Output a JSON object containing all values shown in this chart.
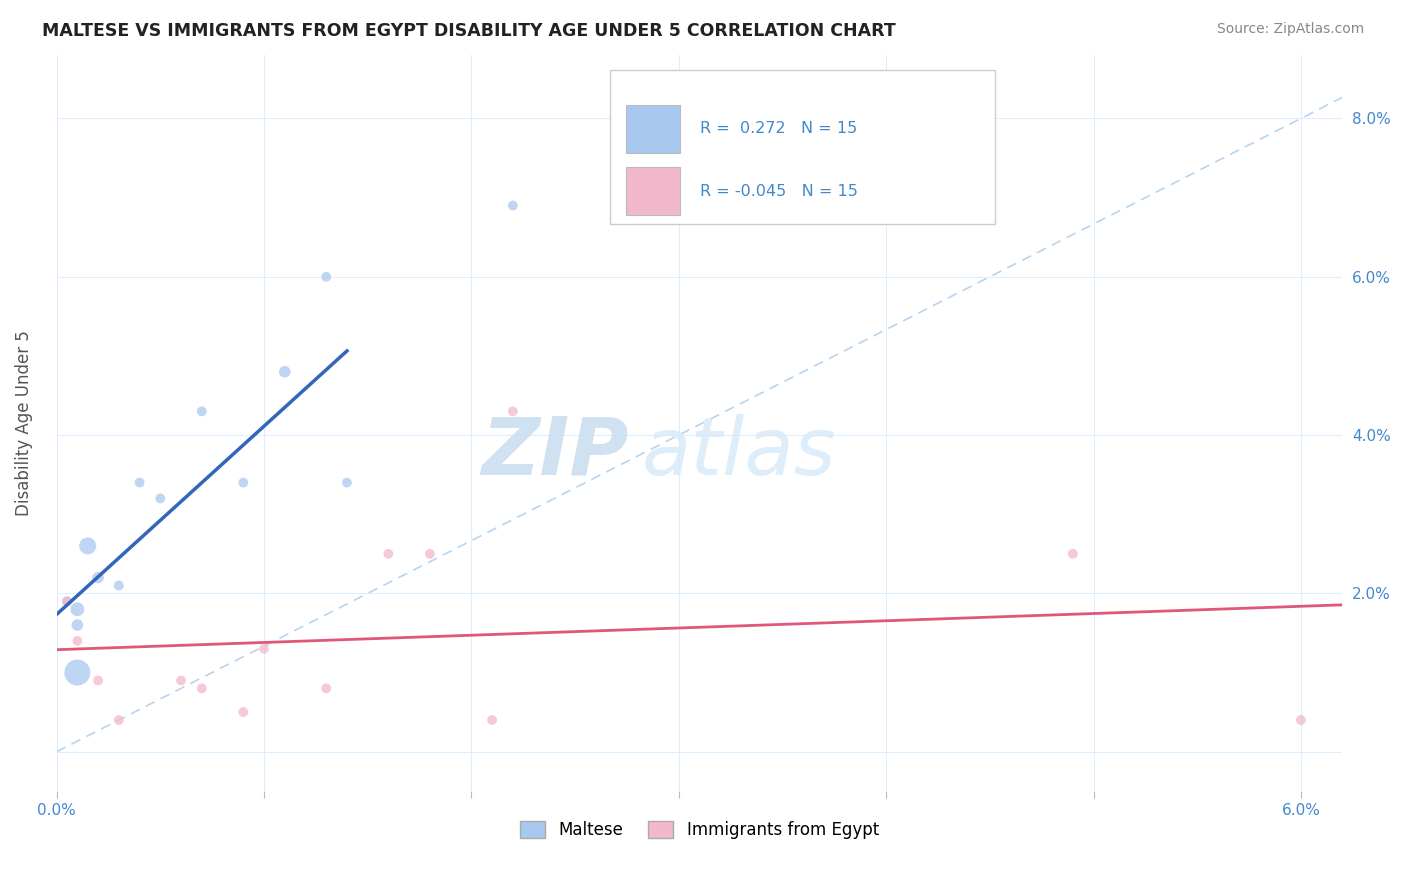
{
  "title": "MALTESE VS IMMIGRANTS FROM EGYPT DISABILITY AGE UNDER 5 CORRELATION CHART",
  "source": "Source: ZipAtlas.com",
  "ylabel": "Disability Age Under 5",
  "xlim": [
    0.0,
    0.062
  ],
  "ylim": [
    -0.005,
    0.088
  ],
  "legend_label1": "Maltese",
  "legend_label2": "Immigrants from Egypt",
  "r1": "0.272",
  "n1": 15,
  "r2": "-0.045",
  "n2": 15,
  "color_maltese": "#a8c8f0",
  "color_egypt": "#f4b8cc",
  "color_line_maltese": "#3366bb",
  "color_line_egypt": "#e05878",
  "color_diag": "#b8d4ee",
  "maltese_x": [
    0.0005,
    0.001,
    0.001,
    0.001,
    0.0015,
    0.002,
    0.003,
    0.004,
    0.005,
    0.007,
    0.009,
    0.011,
    0.013,
    0.014,
    0.022
  ],
  "maltese_y": [
    0.019,
    0.018,
    0.016,
    0.01,
    0.026,
    0.022,
    0.021,
    0.034,
    0.032,
    0.043,
    0.034,
    0.048,
    0.06,
    0.034,
    0.069
  ],
  "maltese_size": [
    50,
    100,
    70,
    350,
    150,
    70,
    50,
    50,
    50,
    50,
    50,
    70,
    50,
    50,
    50
  ],
  "egypt_x": [
    0.0005,
    0.001,
    0.002,
    0.003,
    0.006,
    0.007,
    0.009,
    0.01,
    0.013,
    0.016,
    0.018,
    0.021,
    0.022,
    0.049,
    0.06
  ],
  "egypt_y": [
    0.019,
    0.014,
    0.009,
    0.004,
    0.009,
    0.008,
    0.005,
    0.013,
    0.008,
    0.025,
    0.025,
    0.004,
    0.043,
    0.025,
    0.004
  ],
  "egypt_size": [
    50,
    50,
    50,
    50,
    50,
    50,
    50,
    50,
    50,
    50,
    50,
    50,
    50,
    50,
    50
  ],
  "maltese_line_x_start": 0.0,
  "maltese_line_x_end": 0.014,
  "egypt_line_x_start": 0.0,
  "egypt_line_x_end": 0.062,
  "watermark_zip": "ZIP",
  "watermark_atlas": "atlas",
  "background_color": "#ffffff",
  "grid_color": "#ddeeff",
  "font_color_title": "#222222",
  "font_color_source": "#888888",
  "tick_label_color": "#4488cc",
  "legend_r_color": "#4488cc"
}
